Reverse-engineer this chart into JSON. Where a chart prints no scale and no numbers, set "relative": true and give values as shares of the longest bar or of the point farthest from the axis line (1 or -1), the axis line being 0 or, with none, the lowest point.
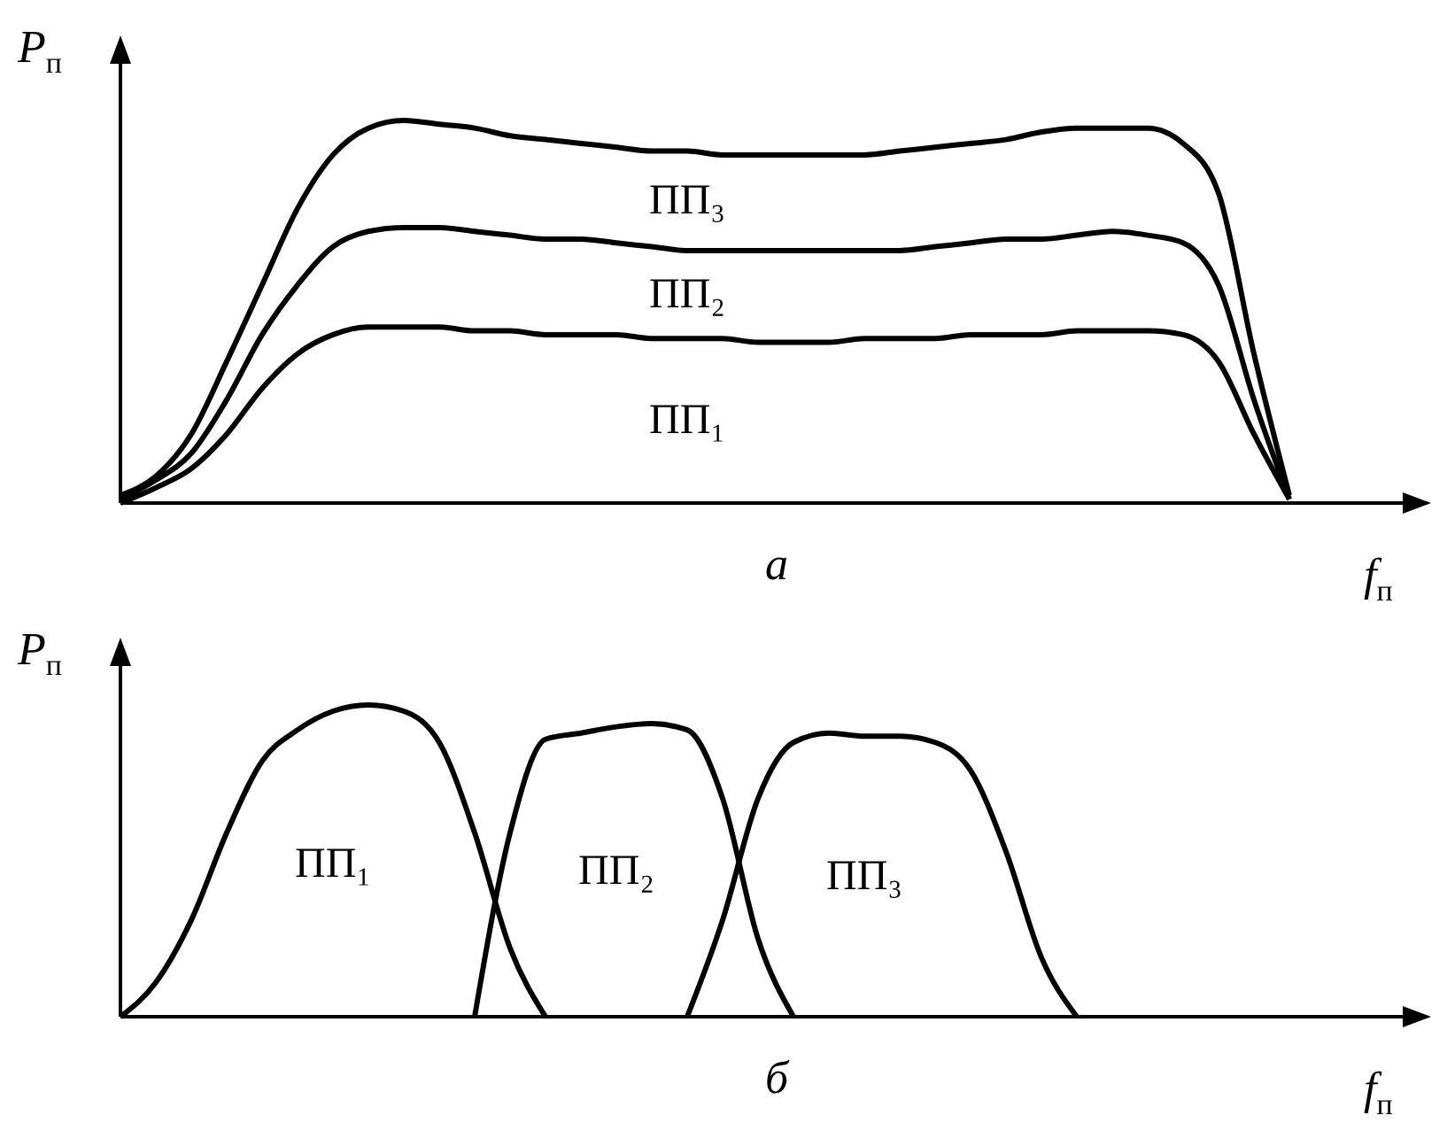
{
  "chart_data": [
    {
      "type": "line",
      "relative": true,
      "xlabel": "f$_{п}$",
      "ylabel": "P$_{п}$",
      "annotations": [
        "а"
      ],
      "categories": [
        null,
        null,
        null,
        null,
        null,
        null,
        null,
        null,
        null,
        null,
        null,
        null,
        null,
        null,
        null,
        null,
        null,
        null,
        null,
        null,
        null,
        null,
        null,
        null,
        null,
        null,
        null,
        null,
        null,
        null,
        null,
        null,
        null,
        null,
        null,
        null,
        null,
        null
      ],
      "series": [
        {
          "name": "ПП₁",
          "color": "#000000",
          "values": [
            0.0,
            0.04,
            0.09,
            0.18,
            0.3,
            0.39,
            0.44,
            0.46,
            0.46,
            0.46,
            0.45,
            0.45,
            0.44,
            0.44,
            0.44,
            0.43,
            0.43,
            0.43,
            0.42,
            0.42,
            0.42,
            0.43,
            0.43,
            0.43,
            0.44,
            0.44,
            0.44,
            0.45,
            0.45,
            0.45,
            0.44,
            0.37,
            0.18,
            0.01,
            null,
            null,
            null,
            null
          ]
        },
        {
          "name": "ПП₂",
          "color": "#000000",
          "values": [
            0.01,
            0.06,
            0.13,
            0.27,
            0.44,
            0.57,
            0.67,
            0.71,
            0.72,
            0.72,
            0.71,
            0.7,
            0.69,
            0.69,
            0.68,
            0.67,
            0.66,
            0.66,
            0.66,
            0.66,
            0.66,
            0.66,
            0.66,
            0.67,
            0.68,
            0.69,
            0.69,
            0.7,
            0.71,
            0.7,
            0.68,
            0.57,
            0.27,
            0.01,
            null,
            null,
            null,
            null
          ]
        },
        {
          "name": "ПП₃",
          "color": "#000000",
          "values": [
            0.02,
            0.07,
            0.18,
            0.37,
            0.57,
            0.77,
            0.91,
            0.98,
            1,
            0.99,
            0.98,
            0.96,
            0.95,
            0.94,
            0.93,
            0.92,
            0.92,
            0.91,
            0.91,
            0.91,
            0.91,
            0.91,
            0.92,
            0.93,
            0.94,
            0.95,
            0.97,
            0.98,
            0.98,
            0.98,
            0.94,
            0.81,
            0.39,
            0.02,
            null,
            null,
            null,
            null
          ]
        }
      ]
    },
    {
      "type": "line",
      "relative": true,
      "xlabel": "f$_{п}$",
      "ylabel": "P$_{п}$",
      "annotations": [
        "б"
      ],
      "categories": [
        null,
        null,
        null,
        null,
        null,
        null,
        null,
        null,
        null,
        null,
        null,
        null,
        null,
        null,
        null,
        null,
        null,
        null,
        null,
        null,
        null,
        null,
        null,
        null,
        null,
        null,
        null,
        null,
        null,
        null,
        null,
        null,
        null,
        null,
        null,
        null,
        null,
        null
      ],
      "series": [
        {
          "name": "ПП₁",
          "color": "#000000",
          "values": [
            0,
            0.11,
            0.31,
            0.59,
            0.82,
            0.92,
            0.98,
            1,
            0.98,
            0.88,
            0.59,
            0.22,
            0,
            null,
            null,
            null,
            null,
            null,
            null,
            null,
            null,
            null,
            null,
            null,
            null,
            null,
            null,
            null,
            null,
            null,
            null,
            null,
            null,
            null,
            null,
            null,
            null,
            null
          ]
        },
        {
          "name": "ПП₂",
          "color": "#000000",
          "values": [
            null,
            null,
            null,
            null,
            null,
            null,
            null,
            null,
            null,
            null,
            0,
            0.59,
            0.89,
            0.91,
            0.93,
            0.94,
            0.92,
            0.7,
            0.25,
            0,
            null,
            null,
            null,
            null,
            null,
            null,
            null,
            null,
            null,
            null,
            null,
            null,
            null,
            null,
            null,
            null,
            null,
            null
          ]
        },
        {
          "name": "ПП₃",
          "color": "#000000",
          "values": [
            null,
            null,
            null,
            null,
            null,
            null,
            null,
            null,
            null,
            null,
            null,
            null,
            null,
            null,
            null,
            null,
            0,
            0.31,
            0.7,
            0.88,
            0.91,
            0.9,
            0.9,
            0.88,
            0.79,
            0.53,
            0.19,
            0,
            null,
            null,
            null,
            null,
            null,
            null,
            null,
            null,
            null,
            null
          ]
        }
      ]
    }
  ]
}
